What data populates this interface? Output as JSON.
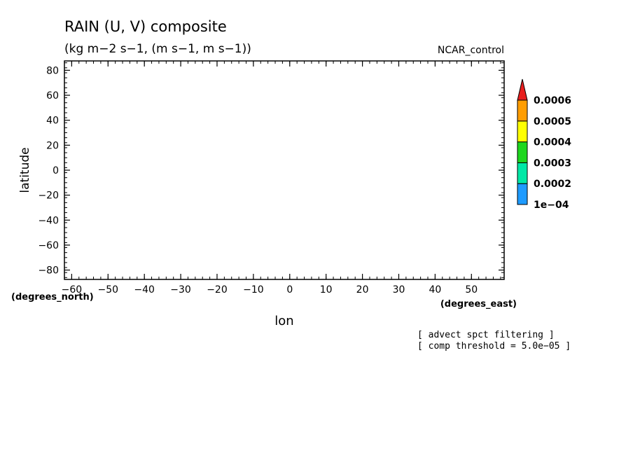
{
  "chart_data": {
    "type": "heatmap",
    "title": "RAIN (U, V) composite",
    "subtitle": "(kg m−2 s−1, (m s−1, m s−1))",
    "experiment": "NCAR_control",
    "xlabel": "lon",
    "ylabel": "latitude",
    "x_units": "(degrees_east)",
    "y_units": "(degrees_north)",
    "xlim": [
      -62,
      59
    ],
    "ylim": [
      -87.5,
      87.5
    ],
    "x_ticks": [
      {
        "value": -60,
        "label": "−60"
      },
      {
        "value": -50,
        "label": "−50"
      },
      {
        "value": -40,
        "label": "−40"
      },
      {
        "value": -30,
        "label": "−30"
      },
      {
        "value": -20,
        "label": "−20"
      },
      {
        "value": -10,
        "label": "−10"
      },
      {
        "value": 0,
        "label": "0"
      },
      {
        "value": 10,
        "label": "10"
      },
      {
        "value": 20,
        "label": "20"
      },
      {
        "value": 30,
        "label": "30"
      },
      {
        "value": 40,
        "label": "40"
      },
      {
        "value": 50,
        "label": "50"
      }
    ],
    "y_ticks": [
      {
        "value": 80,
        "label": "80"
      },
      {
        "value": 60,
        "label": "60"
      },
      {
        "value": 40,
        "label": "40"
      },
      {
        "value": 20,
        "label": "20"
      },
      {
        "value": 0,
        "label": "0"
      },
      {
        "value": -20,
        "label": "−20"
      },
      {
        "value": -40,
        "label": "−40"
      },
      {
        "value": -60,
        "label": "−60"
      },
      {
        "value": -80,
        "label": "−80"
      }
    ],
    "colorbar": {
      "levels": [
        "1e−04",
        "0.0002",
        "0.0003",
        "0.0004",
        "0.0005",
        "0.0006"
      ],
      "colors": [
        "#1e9bff",
        "#00e8a6",
        "#1ed71e",
        "#ffff00",
        "#ff9d00"
      ],
      "extend_color": "#e81e1e"
    },
    "values": [],
    "notes": [
      "[ advect spct filtering ]",
      "[ comp threshold = 5.0e−05 ]"
    ]
  }
}
